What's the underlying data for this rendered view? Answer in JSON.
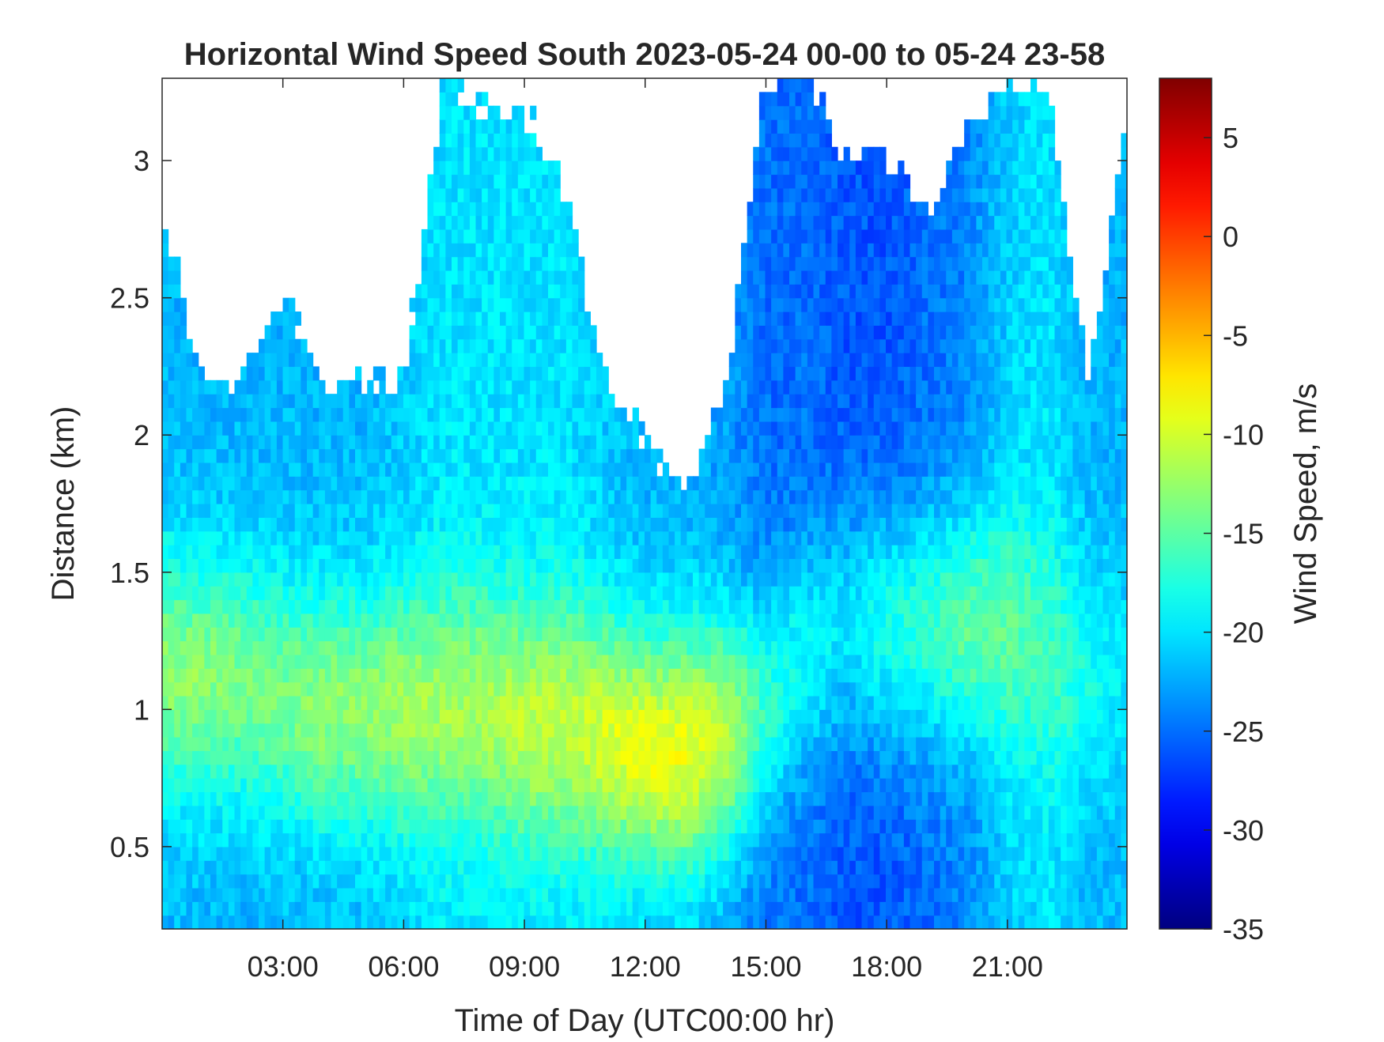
{
  "chart_data": {
    "type": "heatmap",
    "title": "Horizontal Wind Speed South 2023-05-24 00-00 to 05-24 23-58",
    "xlabel": "Time of Day (UTC00:00 hr)",
    "ylabel": "Distance (km)",
    "colorbar_label": "Wind Speed, m/s",
    "xlim_hours": [
      0,
      23.97
    ],
    "ylim_km": [
      0.2,
      3.3
    ],
    "clim": [
      -35,
      8
    ],
    "colormap": "jet",
    "background_no_data": "#ffffff",
    "x_ticks": [
      {
        "value": 3,
        "label": "03:00"
      },
      {
        "value": 6,
        "label": "06:00"
      },
      {
        "value": 9,
        "label": "09:00"
      },
      {
        "value": 12,
        "label": "12:00"
      },
      {
        "value": 15,
        "label": "15:00"
      },
      {
        "value": 18,
        "label": "18:00"
      },
      {
        "value": 21,
        "label": "21:00"
      }
    ],
    "y_ticks": [
      {
        "value": 0.5,
        "label": "0.5"
      },
      {
        "value": 1,
        "label": "1"
      },
      {
        "value": 1.5,
        "label": "1.5"
      },
      {
        "value": 2,
        "label": "2"
      },
      {
        "value": 2.5,
        "label": "2.5"
      },
      {
        "value": 3,
        "label": "3"
      }
    ],
    "colorbar_ticks": [
      {
        "value": 5,
        "label": "5"
      },
      {
        "value": 0,
        "label": "0"
      },
      {
        "value": -5,
        "label": "-5"
      },
      {
        "value": -10,
        "label": "-10"
      },
      {
        "value": -15,
        "label": "-15"
      },
      {
        "value": -20,
        "label": "-20"
      },
      {
        "value": -25,
        "label": "-25"
      },
      {
        "value": -30,
        "label": "-30"
      },
      {
        "value": -35,
        "label": "-35"
      }
    ],
    "wind_field_approx": {
      "time_hours": [
        0,
        1,
        2,
        3,
        4,
        5,
        6,
        7,
        8,
        9,
        10,
        11,
        12,
        13,
        14,
        15,
        16,
        17,
        18,
        19,
        20,
        21,
        22,
        23,
        23.97
      ],
      "data_top_km": [
        2.8,
        2.2,
        2.2,
        2.5,
        2.2,
        2.2,
        2.2,
        3.3,
        3.2,
        3.2,
        2.9,
        2.2,
        2.0,
        1.8,
        2.2,
        3.3,
        3.3,
        3.0,
        3.0,
        2.8,
        3.1,
        3.3,
        3.3,
        2.2,
        3.2
      ],
      "data_bottom_km": [
        0.2,
        0.2,
        0.2,
        0.2,
        0.2,
        0.2,
        0.2,
        0.2,
        0.2,
        0.2,
        0.2,
        0.2,
        0.2,
        0.2,
        0.2,
        0.2,
        0.2,
        0.2,
        0.2,
        0.2,
        0.2,
        0.2,
        0.2,
        0.2,
        0.2
      ],
      "jet_core_height_km": [
        1.15,
        1.1,
        1.1,
        1.05,
        1.0,
        1.0,
        1.0,
        1.0,
        1.0,
        0.95,
        0.95,
        0.9,
        0.85,
        0.85,
        0.9,
        1.0,
        1.2,
        1.3,
        1.3,
        1.3,
        1.3,
        1.3,
        1.2,
        1.1,
        1.1
      ],
      "jet_core_speed_ms": [
        -13,
        -13,
        -14,
        -14,
        -13,
        -13,
        -12,
        -12,
        -12,
        -11,
        -11,
        -10,
        -9,
        -9,
        -11,
        -17,
        -19,
        -20,
        -18,
        -17,
        -15,
        -15,
        -16,
        -18,
        -20
      ],
      "upper_speed_ms": [
        -22,
        -22,
        -22,
        -22,
        -22,
        -22,
        -21,
        -20,
        -20,
        -20,
        -20,
        -21,
        -22,
        -22,
        -23,
        -25,
        -25,
        -26,
        -26,
        -25,
        -24,
        -21,
        -20,
        -22,
        -22
      ]
    }
  }
}
